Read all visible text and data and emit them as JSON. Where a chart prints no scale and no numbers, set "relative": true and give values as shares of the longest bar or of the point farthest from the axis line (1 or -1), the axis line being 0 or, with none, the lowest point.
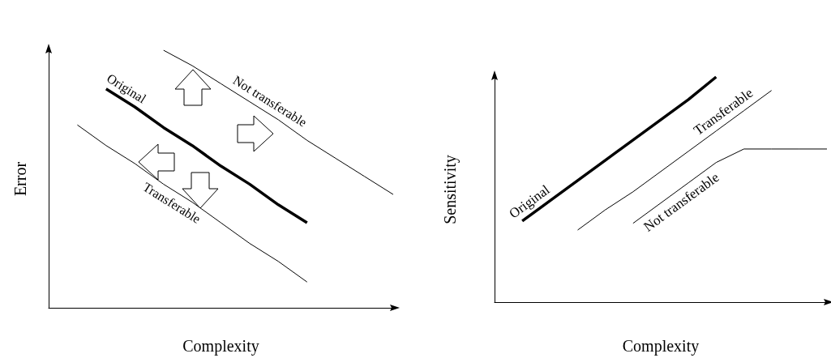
{
  "chart_data": [
    {
      "type": "line",
      "relative": true,
      "xlabel": "Complexity",
      "ylabel": "Error",
      "categories": [
        null,
        null,
        null,
        null,
        null,
        null,
        null,
        null,
        null,
        null,
        null,
        null,
        null
      ],
      "legend": false,
      "grid": false,
      "marker": "none",
      "line_style": "solid",
      "series": [
        {
          "name": "Original",
          "color": "#000000",
          "values": [
            null,
            null,
            0.85,
            0.78,
            0.7,
            0.63,
            0.55,
            0.48,
            0.4,
            0.33,
            null,
            null,
            null
          ]
        },
        {
          "name": "Not transferable",
          "color": "#000000",
          "values": [
            null,
            null,
            null,
            null,
            1.0,
            0.94,
            0.87,
            0.8,
            0.73,
            0.65,
            0.58,
            0.51,
            0.44
          ]
        },
        {
          "name": "Transferable",
          "color": "#000000",
          "values": [
            null,
            0.71,
            0.63,
            0.56,
            0.48,
            0.41,
            0.33,
            0.25,
            0.18,
            0.1,
            null,
            null,
            null
          ]
        }
      ]
    },
    {
      "type": "line",
      "relative": true,
      "xlabel": "Complexity",
      "ylabel": "Sensitivity",
      "categories": [
        null,
        null,
        null,
        null,
        null,
        null,
        null,
        null,
        null,
        null,
        null,
        null,
        null
      ],
      "legend": false,
      "grid": false,
      "marker": "none",
      "line_style": "solid",
      "series": [
        {
          "name": "Original",
          "color": "#000000",
          "values": [
            null,
            0.36,
            0.45,
            0.54,
            0.63,
            0.72,
            0.81,
            0.9,
            1.0,
            null,
            null,
            null,
            null
          ]
        },
        {
          "name": "Transferable",
          "color": "#000000",
          "values": [
            null,
            null,
            null,
            0.32,
            0.41,
            0.49,
            0.58,
            0.67,
            0.76,
            0.85,
            0.94,
            null,
            null
          ]
        },
        {
          "name": "Not transferable",
          "color": "#000000",
          "values": [
            null,
            null,
            null,
            null,
            null,
            0.35,
            0.44,
            0.53,
            0.62,
            0.68,
            0.68,
            0.68,
            0.68
          ]
        }
      ]
    }
  ]
}
